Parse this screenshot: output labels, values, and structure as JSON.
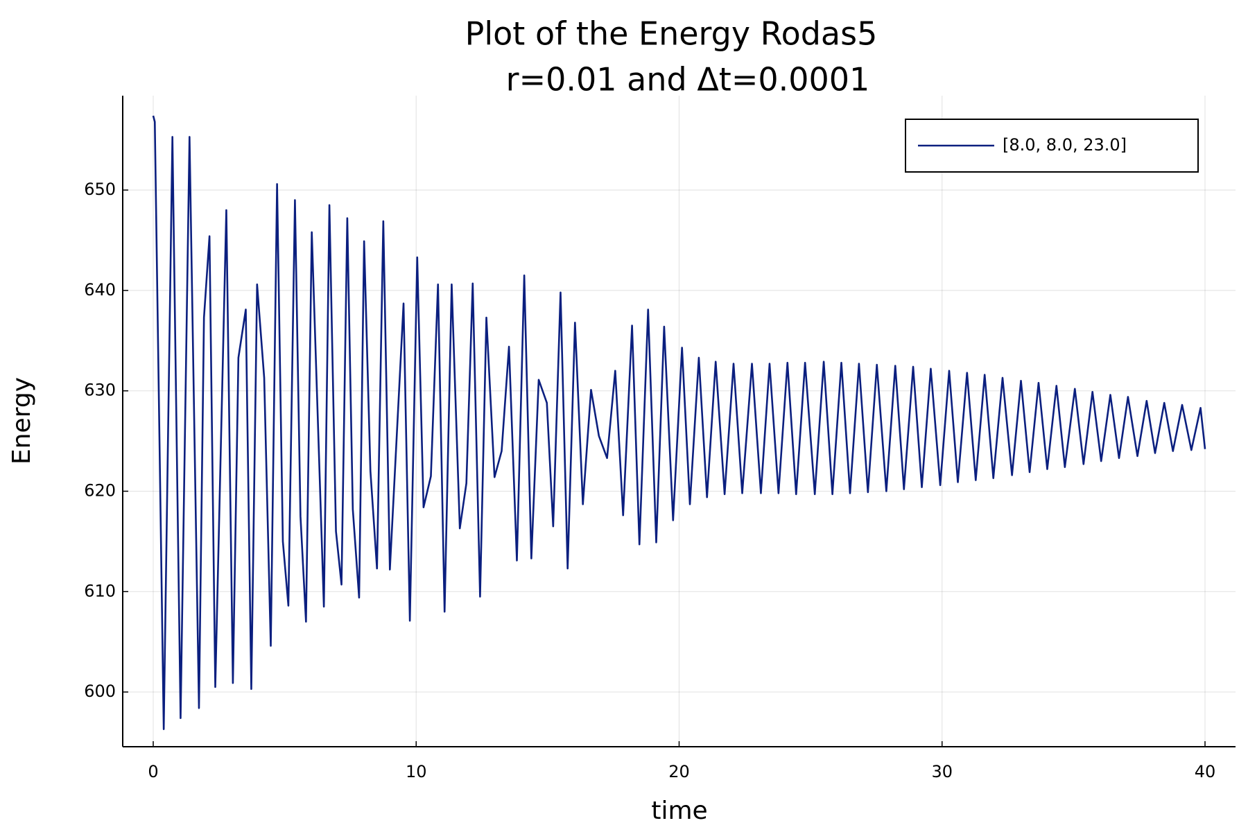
{
  "chart_data": {
    "type": "line",
    "title": [
      "Plot of the Energy Rodas5",
      "r=0.01 and Δt=0.0001"
    ],
    "xlabel": "time",
    "ylabel": "Energy",
    "x": [
      0,
      0.06,
      0.4,
      0.73,
      1.04,
      1.38,
      1.74,
      1.93,
      2.14,
      2.36,
      2.78,
      3.03,
      3.24,
      3.52,
      3.73,
      3.95,
      4.22,
      4.47,
      4.71,
      4.93,
      5.14,
      5.39,
      5.6,
      5.81,
      6.03,
      6.49,
      6.7,
      6.95,
      7.16,
      7.38,
      7.59,
      7.83,
      8.02,
      8.26,
      8.51,
      8.75,
      9.0,
      9.52,
      9.76,
      10.04,
      10.28,
      10.56,
      10.83,
      11.08,
      11.35,
      11.66,
      11.91,
      12.15,
      12.43,
      12.67,
      12.98,
      13.25,
      13.53,
      13.83,
      14.11,
      14.38,
      14.66,
      14.97,
      15.21,
      15.49,
      15.76,
      16.04,
      16.34,
      16.65,
      16.95,
      17.26,
      17.57,
      17.87,
      18.21,
      18.49,
      18.82,
      19.13,
      19.43,
      19.77,
      20.11,
      20.41,
      20.75,
      21.06,
      21.39,
      21.73,
      22.07,
      22.4,
      22.77,
      23.11,
      23.44,
      23.78,
      24.12,
      24.45,
      24.79,
      25.16,
      25.5,
      25.83,
      26.17,
      26.5,
      26.84,
      27.18,
      27.52,
      27.88,
      28.22,
      28.55,
      28.9,
      29.23,
      29.57,
      29.93,
      30.27,
      30.6,
      30.95,
      31.28,
      31.62,
      31.95,
      32.3,
      32.66,
      33.0,
      33.33,
      33.67,
      34.0,
      34.35,
      34.67,
      35.05,
      35.38,
      35.72,
      36.05,
      36.4,
      36.73,
      37.07,
      37.43,
      37.78,
      38.1,
      38.45,
      38.78,
      39.13,
      39.48,
      39.83,
      40
    ],
    "series": [
      {
        "name": "[8.0, 8.0, 23.0]",
        "color": "#0b1f7f",
        "values": [
          657.4,
          656.8,
          596.3,
          655.3,
          597.4,
          655.3,
          598.4,
          637.3,
          645.4,
          600.5,
          648.0,
          600.9,
          633.3,
          638.1,
          600.3,
          640.6,
          631.3,
          604.6,
          650.6,
          615.0,
          608.6,
          649.0,
          617.5,
          607.0,
          645.8,
          608.5,
          648.5,
          616.0,
          610.7,
          647.2,
          618.2,
          609.4,
          644.9,
          622.0,
          612.3,
          646.9,
          612.2,
          638.7,
          607.1,
          643.3,
          618.4,
          621.5,
          640.6,
          608.0,
          640.6,
          616.3,
          620.8,
          640.7,
          609.5,
          637.3,
          621.4,
          624.0,
          634.4,
          613.1,
          641.5,
          613.3,
          631.1,
          628.8,
          616.5,
          639.8,
          612.3,
          636.8,
          618.7,
          630.1,
          625.5,
          623.3,
          632.0,
          617.6,
          636.5,
          614.7,
          638.1,
          614.9,
          636.4,
          617.1,
          634.3,
          618.7,
          633.3,
          619.4,
          632.9,
          619.7,
          632.7,
          619.8,
          632.7,
          619.8,
          632.7,
          619.8,
          632.8,
          619.7,
          632.8,
          619.7,
          632.9,
          619.7,
          632.8,
          619.8,
          632.7,
          619.9,
          632.6,
          620.0,
          632.5,
          620.2,
          632.4,
          620.4,
          632.2,
          620.6,
          632.0,
          620.9,
          631.8,
          621.1,
          631.6,
          621.3,
          631.3,
          621.6,
          631.0,
          621.9,
          630.8,
          622.2,
          630.5,
          622.4,
          630.2,
          622.7,
          629.9,
          623.0,
          629.6,
          623.3,
          629.4,
          623.5,
          629.0,
          623.8,
          628.8,
          624.0,
          628.6,
          624.1,
          628.3,
          624.2
        ]
      }
    ],
    "xlim": [
      -1.16,
      41.16
    ],
    "xticks": [
      0,
      10,
      20,
      30,
      40
    ],
    "ylim": [
      594.55,
      659.4
    ],
    "yticks": [
      600,
      610,
      620,
      630,
      640,
      650
    ],
    "grid": true,
    "legend": "top-right"
  }
}
